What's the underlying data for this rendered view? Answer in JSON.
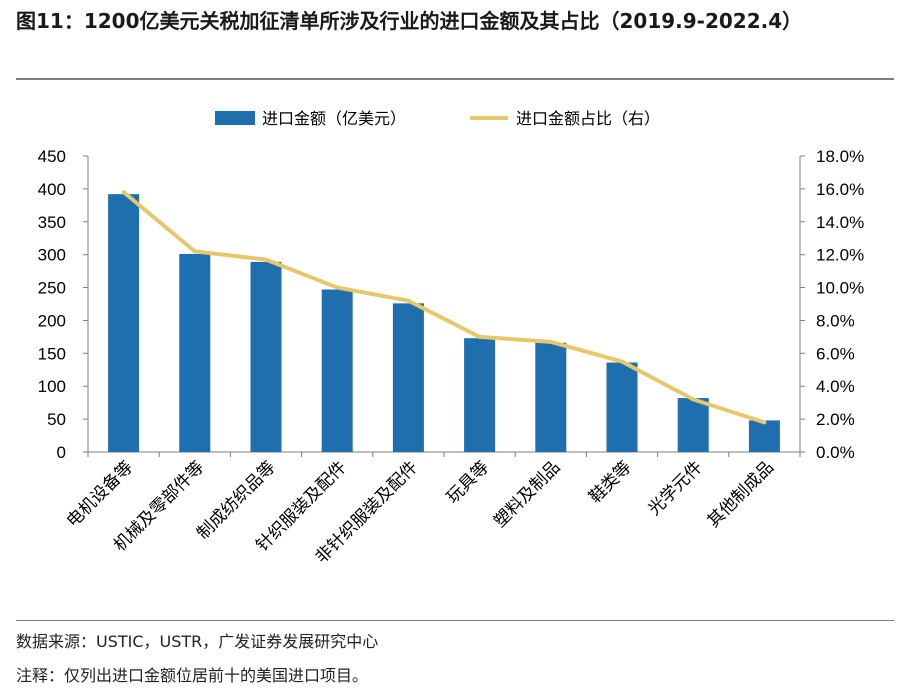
{
  "figure": {
    "title": "图11：1200亿美元关税加征清单所涉及行业的进口金额及其占比（2019.9-2022.4）",
    "source": "数据来源：USTIC，USTR，广发证券发展研究中心",
    "note": "注释：仅列出进口金额位居前十的美国进口项目。"
  },
  "colors": {
    "bar": "#1F6EAE",
    "line": "#E6C76A",
    "axis": "#7f7f7f"
  },
  "chart_data": {
    "type": "bar+line",
    "categories": [
      "电机设备等",
      "机械及零部件等",
      "制成纺织品等",
      "针织服装及配件",
      "非针织服装及配件",
      "玩具等",
      "塑料及制品",
      "鞋类等",
      "光学元件",
      "其他制成品"
    ],
    "series": [
      {
        "name": "进口金额（亿美元）",
        "type": "bar",
        "axis": "left",
        "values": [
          392,
          301,
          289,
          247,
          226,
          173,
          166,
          136,
          82,
          48
        ]
      },
      {
        "name": "进口金额占比（右）",
        "type": "line",
        "axis": "right",
        "values": [
          15.8,
          12.2,
          11.7,
          10.0,
          9.2,
          7.0,
          6.7,
          5.5,
          3.2,
          1.8
        ]
      }
    ],
    "y_left": {
      "min": 0,
      "max": 450,
      "ticks": [
        "0",
        "50",
        "100",
        "150",
        "200",
        "250",
        "300",
        "350",
        "400",
        "450"
      ]
    },
    "y_right": {
      "min": 0,
      "max": 18,
      "ticks": [
        "0.0%",
        "2.0%",
        "4.0%",
        "6.0%",
        "8.0%",
        "10.0%",
        "12.0%",
        "14.0%",
        "16.0%",
        "18.0%"
      ]
    },
    "legend_position": "top-center"
  }
}
